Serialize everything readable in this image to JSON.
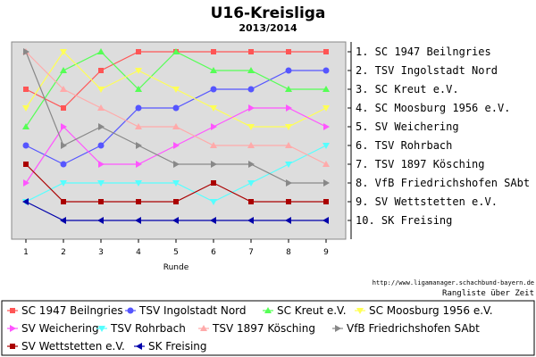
{
  "chart_data": {
    "type": "line",
    "title": "U16-Kreisliga",
    "subtitle": "2013/2014",
    "xlabel": "Runde",
    "ylabel": "",
    "x": [
      1,
      2,
      3,
      4,
      5,
      6,
      7,
      8,
      9
    ],
    "ylim": [
      11,
      0
    ],
    "grid": false,
    "legend_position": "bottom",
    "ranking": [
      "1.  SC 1947 Beilngries",
      "2.  TSV Ingolstadt Nord",
      "3.  SC Kreut e.V.",
      "4.  SC Moosburg 1956 e.V.",
      "5.  SV Weichering",
      "6.  TSV Rohrbach",
      "7.  TSV 1897 Kösching",
      "8.  VfB Friedrichshofen SAbt",
      "9.  SV Wettstetten e.V.",
      "10. SK Freising"
    ],
    "source": "http://www.ligamanager.schachbund-bayern.de",
    "note": "Rangliste über Zeit",
    "series": [
      {
        "name": "SC 1947 Beilngries",
        "color": "#ff5555",
        "marker": "square",
        "values": [
          3,
          4,
          2,
          1,
          1,
          1,
          1,
          1,
          1
        ]
      },
      {
        "name": "TSV Ingolstadt Nord",
        "color": "#5555ff",
        "marker": "circle",
        "values": [
          6,
          7,
          6,
          4,
          4,
          3,
          3,
          2,
          2
        ]
      },
      {
        "name": "SC Kreut e.V.",
        "color": "#55ff55",
        "marker": "triangle-up",
        "values": [
          5,
          2,
          1,
          3,
          1,
          2,
          2,
          3,
          3
        ]
      },
      {
        "name": "SC Moosburg 1956 e.V.",
        "color": "#ffff55",
        "marker": "triangle-down",
        "values": [
          4,
          1,
          3,
          2,
          3,
          4,
          5,
          5,
          4
        ]
      },
      {
        "name": "SV Weichering",
        "color": "#ff55ff",
        "marker": "triangle-right",
        "values": [
          8,
          5,
          7,
          7,
          6,
          5,
          4,
          4,
          5
        ]
      },
      {
        "name": "TSV Rohrbach",
        "color": "#55ffff",
        "marker": "triangle-down",
        "values": [
          9,
          8,
          8,
          8,
          8,
          9,
          8,
          7,
          6
        ]
      },
      {
        "name": "TSV 1897 Kösching",
        "color": "#ffaaaa",
        "marker": "triangle-up",
        "values": [
          1,
          3,
          4,
          5,
          5,
          6,
          6,
          6,
          7
        ]
      },
      {
        "name": "VfB Friedrichshofen SAbt",
        "color": "#888888",
        "marker": "triangle-right",
        "values": [
          1,
          6,
          5,
          6,
          7,
          7,
          7,
          8,
          8
        ]
      },
      {
        "name": "SV Wettstetten e.V.",
        "color": "#aa0000",
        "marker": "square",
        "values": [
          7,
          9,
          9,
          9,
          9,
          8,
          9,
          9,
          9
        ]
      },
      {
        "name": "SK Freising",
        "color": "#0000aa",
        "marker": "triangle-left",
        "values": [
          9,
          10,
          10,
          10,
          10,
          10,
          10,
          10,
          10
        ]
      }
    ]
  }
}
